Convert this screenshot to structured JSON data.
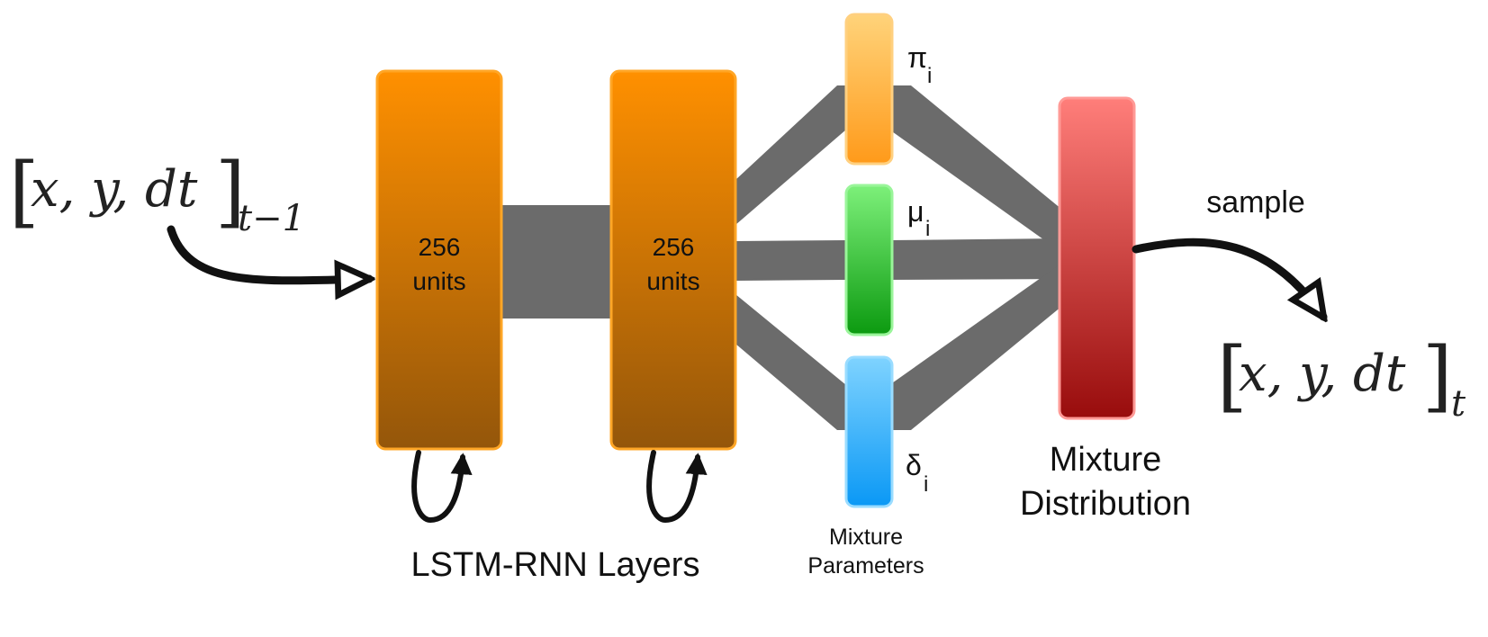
{
  "input_label": {
    "bracket_left": "[",
    "content": "x, y, dt",
    "bracket_right": "]",
    "subscript": "t−1"
  },
  "output_label": {
    "bracket_left": "[",
    "content": "x, y, dt",
    "bracket_right": "]",
    "subscript": "t"
  },
  "lstm_layers": [
    {
      "line1": "256",
      "line2": "units"
    },
    {
      "line1": "256",
      "line2": "units"
    }
  ],
  "lstm_caption": "LSTM-RNN Layers",
  "mixture_params": [
    {
      "symbol": "π",
      "subscript": "i",
      "color_top": "#ffd37a",
      "color_bottom": "#ff9a1a"
    },
    {
      "symbol": "μ",
      "subscript": "i",
      "color_top": "#7df07a",
      "color_bottom": "#0c9a10"
    },
    {
      "symbol": "δ",
      "subscript": "i",
      "color_top": "#7fd3ff",
      "color_bottom": "#0a98f5"
    }
  ],
  "mixture_params_caption": [
    "Mixture",
    "Parameters"
  ],
  "mixture_distribution_caption": [
    "Mixture",
    "Distribution"
  ],
  "sample_label": "sample",
  "colors": {
    "lstm_top": "#ff9000",
    "lstm_bottom": "#94560a",
    "distribution_top": "#ff7e7a",
    "distribution_bottom": "#980c0c",
    "connector": "#6b6b6b",
    "arrow": "#111111"
  }
}
